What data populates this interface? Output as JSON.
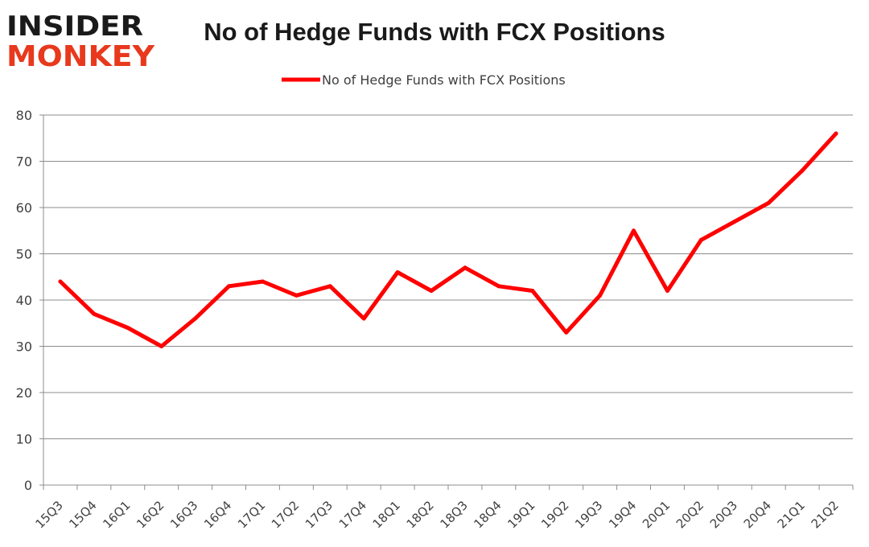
{
  "logo": {
    "line1": "INSIDER",
    "line2": "MONKEY"
  },
  "chart_data": {
    "type": "line",
    "title": "No of Hedge Funds with FCX Positions",
    "xlabel": "",
    "ylabel": "",
    "ylim": [
      0,
      80
    ],
    "yticks": [
      0,
      10,
      20,
      30,
      40,
      50,
      60,
      70,
      80
    ],
    "grid": true,
    "legend_position": "top",
    "categories": [
      "15Q3",
      "15Q4",
      "16Q1",
      "16Q2",
      "16Q3",
      "16Q4",
      "17Q1",
      "17Q2",
      "17Q3",
      "17Q4",
      "18Q1",
      "18Q2",
      "18Q3",
      "18Q4",
      "19Q1",
      "19Q2",
      "19Q3",
      "19Q4",
      "20Q1",
      "20Q2",
      "20Q3",
      "20Q4",
      "21Q1",
      "21Q2"
    ],
    "series": [
      {
        "name": "No of Hedge Funds with FCX Positions",
        "color": "#ff0000",
        "values": [
          44,
          37,
          34,
          30,
          36,
          43,
          44,
          41,
          43,
          36,
          46,
          42,
          47,
          43,
          42,
          33,
          41,
          55,
          42,
          53,
          57,
          61,
          68,
          76
        ]
      }
    ]
  }
}
